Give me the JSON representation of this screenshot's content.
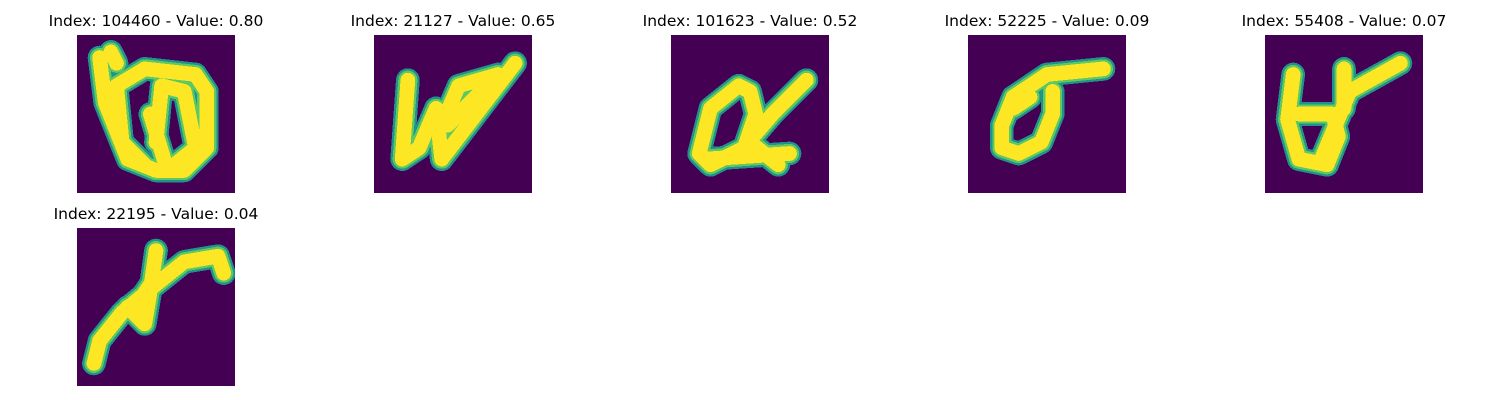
{
  "colors": {
    "background": "#440154",
    "stroke_outer": "#21918c",
    "stroke_mid": "#5ec962",
    "stroke_core": "#fde725"
  },
  "panels": [
    {
      "title": "Index: 104460 - Value: 0.80"
    },
    {
      "title": "Index: 21127 - Value: 0.65"
    },
    {
      "title": "Index: 101623 - Value: 0.52"
    },
    {
      "title": "Index: 52225 - Value: 0.09"
    },
    {
      "title": "Index: 55408 - Value: 0.07"
    },
    {
      "title": "Index: 22195 - Value: 0.04"
    }
  ]
}
